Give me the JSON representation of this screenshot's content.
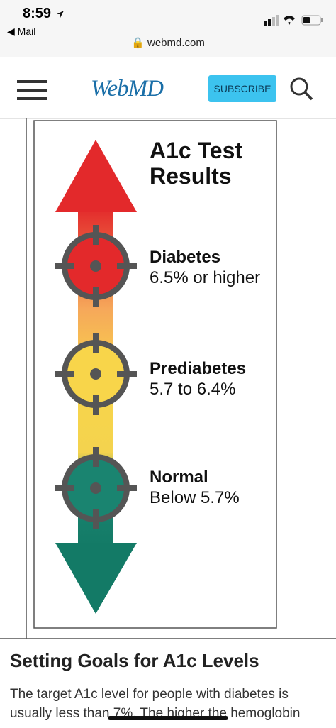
{
  "status_bar": {
    "time": "8:59",
    "back": "Mail"
  },
  "address_bar": {
    "url": "webmd.com"
  },
  "header": {
    "logo": "WebMD",
    "subscribe": "SUBSCRIBE"
  },
  "infographic": {
    "title": "A1c Test Results",
    "levels": [
      {
        "label": "Diabetes",
        "range": "6.5% or higher"
      },
      {
        "label": "Prediabetes",
        "range": "5.7 to 6.4%"
      },
      {
        "label": "Normal",
        "range": "Below 5.7%"
      }
    ]
  },
  "article": {
    "heading": "Setting Goals for A1c Levels",
    "text": "The target A1c level for people with diabetes is usually less than 7%. The higher the hemoglobin"
  }
}
